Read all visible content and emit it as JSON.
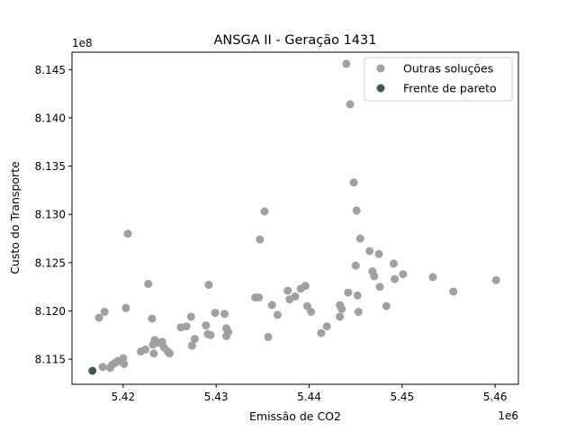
{
  "chart_data": {
    "type": "scatter",
    "title": "ANSGA II - Geração 1431",
    "xlabel": "Emissão de CO2",
    "ylabel": "Custo do Transporte",
    "x_offset_label": "1e6",
    "y_offset_label": "1e8",
    "xlim": [
      5.4145,
      5.4625
    ],
    "ylim": [
      8.1124,
      8.1468
    ],
    "x_ticks": [
      {
        "value": 5.42,
        "label": "5.42"
      },
      {
        "value": 5.43,
        "label": "5.43"
      },
      {
        "value": 5.44,
        "label": "5.44"
      },
      {
        "value": 5.45,
        "label": "5.45"
      },
      {
        "value": 5.46,
        "label": "5.46"
      }
    ],
    "y_ticks": [
      {
        "value": 8.115,
        "label": "8.115"
      },
      {
        "value": 8.12,
        "label": "8.120"
      },
      {
        "value": 8.125,
        "label": "8.125"
      },
      {
        "value": 8.13,
        "label": "8.130"
      },
      {
        "value": 8.135,
        "label": "8.135"
      },
      {
        "value": 8.14,
        "label": "8.140"
      },
      {
        "value": 8.145,
        "label": "8.145"
      }
    ],
    "grid": false,
    "legend_position": "top-right",
    "series": [
      {
        "name": "Outras soluções",
        "color": "#a0a0a0",
        "points": [
          [
            5.4178,
            8.1142
          ],
          [
            5.4174,
            8.1193
          ],
          [
            5.418,
            8.1199
          ],
          [
            5.4186,
            8.1141
          ],
          [
            5.4188,
            8.1144
          ],
          [
            5.4191,
            8.1146
          ],
          [
            5.4194,
            8.1148
          ],
          [
            5.4197,
            8.1148
          ],
          [
            5.42,
            8.1151
          ],
          [
            5.4201,
            8.1145
          ],
          [
            5.4203,
            8.1203
          ],
          [
            5.4205,
            8.128
          ],
          [
            5.4219,
            8.1158
          ],
          [
            5.4224,
            8.116
          ],
          [
            5.4227,
            8.1228
          ],
          [
            5.4231,
            8.1192
          ],
          [
            5.4232,
            8.1165
          ],
          [
            5.4233,
            8.1156
          ],
          [
            5.4234,
            8.117
          ],
          [
            5.4238,
            8.1167
          ],
          [
            5.4242,
            8.1168
          ],
          [
            5.4244,
            8.1162
          ],
          [
            5.4248,
            8.1158
          ],
          [
            5.425,
            8.1156
          ],
          [
            5.4262,
            8.1183
          ],
          [
            5.4268,
            8.1184
          ],
          [
            5.4273,
            8.1194
          ],
          [
            5.4274,
            8.1164
          ],
          [
            5.4277,
            8.1171
          ],
          [
            5.4289,
            8.1185
          ],
          [
            5.4291,
            8.1176
          ],
          [
            5.4292,
            8.1227
          ],
          [
            5.4294,
            8.1175
          ],
          [
            5.4299,
            8.1198
          ],
          [
            5.4309,
            8.1197
          ],
          [
            5.4311,
            8.1174
          ],
          [
            5.4311,
            8.1182
          ],
          [
            5.4313,
            8.1178
          ],
          [
            5.4342,
            8.1214
          ],
          [
            5.4346,
            8.1214
          ],
          [
            5.4347,
            8.1274
          ],
          [
            5.4352,
            8.1303
          ],
          [
            5.4356,
            8.1173
          ],
          [
            5.436,
            8.1206
          ],
          [
            5.4366,
            8.1196
          ],
          [
            5.4377,
            8.1221
          ],
          [
            5.4379,
            8.1212
          ],
          [
            5.4385,
            8.1215
          ],
          [
            5.4391,
            8.1223
          ],
          [
            5.4396,
            8.1226
          ],
          [
            5.4398,
            8.1205
          ],
          [
            5.4402,
            8.1199
          ],
          [
            5.4413,
            8.1177
          ],
          [
            5.4419,
            8.1184
          ],
          [
            5.4433,
            8.1206
          ],
          [
            5.4433,
            8.1194
          ],
          [
            5.4435,
            8.1202
          ],
          [
            5.444,
            8.1456
          ],
          [
            5.4442,
            8.1219
          ],
          [
            5.4444,
            8.1414
          ],
          [
            5.4448,
            8.1333
          ],
          [
            5.445,
            8.1247
          ],
          [
            5.4451,
            8.1304
          ],
          [
            5.4452,
            8.1216
          ],
          [
            5.4453,
            8.1199
          ],
          [
            5.4455,
            8.1275
          ],
          [
            5.4465,
            8.1262
          ],
          [
            5.4468,
            8.1241
          ],
          [
            5.447,
            8.1236
          ],
          [
            5.4475,
            8.1259
          ],
          [
            5.4476,
            8.1225
          ],
          [
            5.4483,
            8.1205
          ],
          [
            5.4491,
            8.1249
          ],
          [
            5.4492,
            8.1233
          ],
          [
            5.4501,
            8.1238
          ],
          [
            5.4533,
            8.1235
          ],
          [
            5.4555,
            8.122
          ],
          [
            5.4601,
            8.1232
          ]
        ]
      },
      {
        "name": "Frente de pareto",
        "color": "#3d5a50",
        "points": [
          [
            5.4167,
            8.1138
          ]
        ]
      }
    ]
  }
}
